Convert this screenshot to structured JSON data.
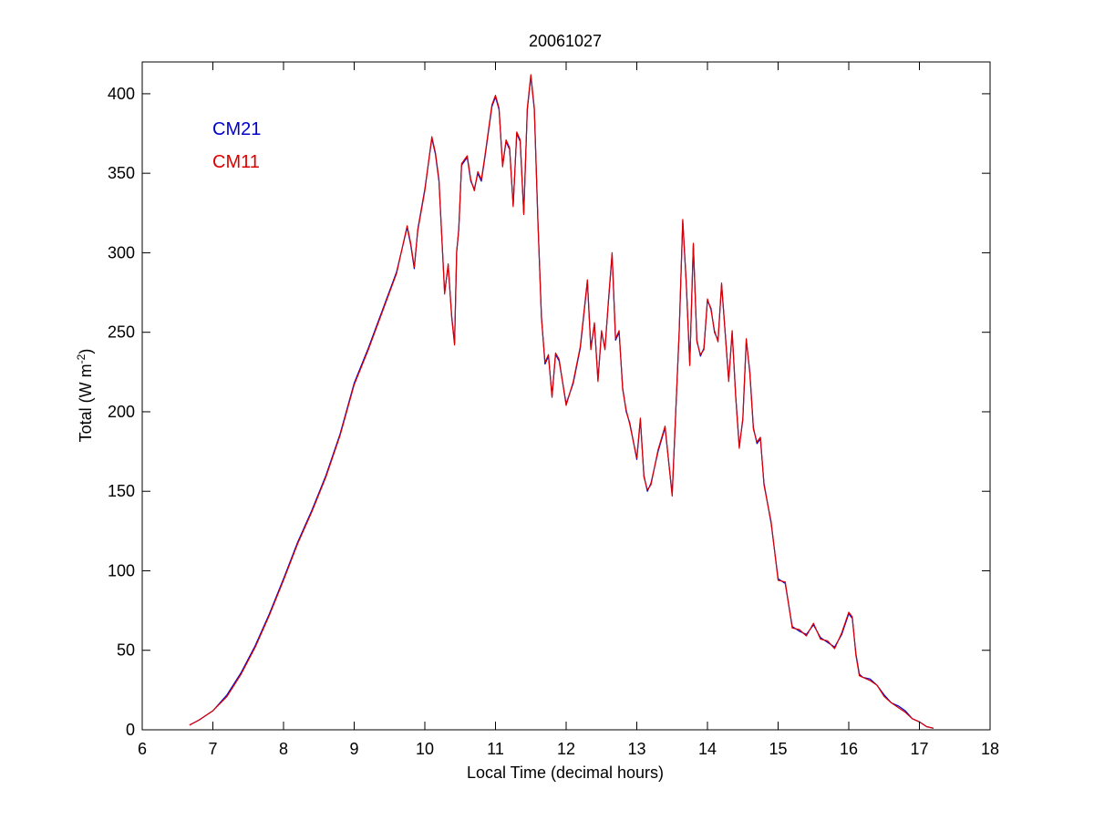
{
  "chart_data": {
    "type": "line",
    "title": "20061027",
    "xlabel": "Local Time (decimal hours)",
    "ylabel_main": "Total (W m",
    "ylabel_sup": "-2",
    "ylabel_close": ")",
    "xlim": [
      6,
      18
    ],
    "ylim": [
      0,
      420
    ],
    "xticks": [
      6,
      7,
      8,
      9,
      10,
      11,
      12,
      13,
      14,
      15,
      16,
      17,
      18
    ],
    "yticks": [
      0,
      50,
      100,
      150,
      200,
      250,
      300,
      350,
      400
    ],
    "grid": false,
    "legend_position": "top-left",
    "series": [
      {
        "name": "CM21",
        "color": "#0000cc",
        "x": [
          6.67,
          6.8,
          7.0,
          7.2,
          7.4,
          7.6,
          7.8,
          8.0,
          8.2,
          8.4,
          8.6,
          8.8,
          9.0,
          9.2,
          9.4,
          9.6,
          9.75,
          9.8,
          9.85,
          9.9,
          10.0,
          10.1,
          10.15,
          10.2,
          10.28,
          10.33,
          10.38,
          10.42,
          10.45,
          10.48,
          10.52,
          10.6,
          10.65,
          10.7,
          10.75,
          10.8,
          10.85,
          10.95,
          11.0,
          11.05,
          11.1,
          11.15,
          11.2,
          11.25,
          11.3,
          11.35,
          11.4,
          11.45,
          11.5,
          11.55,
          11.6,
          11.65,
          11.7,
          11.75,
          11.8,
          11.85,
          11.9,
          12.0,
          12.1,
          12.2,
          12.3,
          12.35,
          12.4,
          12.45,
          12.5,
          12.55,
          12.6,
          12.65,
          12.7,
          12.75,
          12.8,
          12.85,
          12.9,
          13.0,
          13.05,
          13.1,
          13.15,
          13.2,
          13.3,
          13.4,
          13.5,
          13.6,
          13.65,
          13.7,
          13.75,
          13.8,
          13.85,
          13.9,
          13.95,
          14.0,
          14.05,
          14.1,
          14.15,
          14.2,
          14.3,
          14.35,
          14.4,
          14.45,
          14.5,
          14.55,
          14.6,
          14.65,
          14.7,
          14.75,
          14.8,
          14.9,
          15.0,
          15.1,
          15.2,
          15.3,
          15.4,
          15.5,
          15.6,
          15.7,
          15.8,
          15.9,
          16.0,
          16.05,
          16.1,
          16.15,
          16.2,
          16.3,
          16.4,
          16.5,
          16.6,
          16.7,
          16.8,
          16.9,
          17.0,
          17.1,
          17.2
        ],
        "values": [
          3,
          6,
          12,
          22,
          36,
          53,
          73,
          95,
          118,
          138,
          160,
          186,
          218,
          240,
          264,
          288,
          316,
          305,
          290,
          315,
          340,
          372,
          362,
          345,
          275,
          292,
          260,
          243,
          300,
          315,
          355,
          360,
          345,
          340,
          350,
          345,
          360,
          392,
          398,
          390,
          355,
          370,
          365,
          330,
          375,
          370,
          325,
          390,
          411,
          390,
          320,
          260,
          230,
          235,
          210,
          236,
          232,
          205,
          218,
          240,
          282,
          240,
          255,
          220,
          250,
          240,
          270,
          299,
          245,
          250,
          215,
          200,
          193,
          170,
          195,
          160,
          150,
          155,
          175,
          190,
          148,
          250,
          320,
          280,
          230,
          305,
          245,
          235,
          240,
          270,
          265,
          250,
          245,
          280,
          220,
          250,
          210,
          178,
          195,
          245,
          225,
          190,
          180,
          183,
          155,
          130,
          95,
          92,
          65,
          62,
          60,
          66,
          58,
          55,
          52,
          60,
          73,
          70,
          48,
          35,
          33,
          32,
          28,
          22,
          17,
          15,
          12,
          7,
          5,
          2,
          1
        ]
      },
      {
        "name": "CM11",
        "color": "#dd0000",
        "x": [
          6.67,
          6.8,
          7.0,
          7.2,
          7.4,
          7.6,
          7.8,
          8.0,
          8.2,
          8.4,
          8.6,
          8.8,
          9.0,
          9.2,
          9.4,
          9.6,
          9.75,
          9.8,
          9.85,
          9.9,
          10.0,
          10.1,
          10.15,
          10.2,
          10.28,
          10.33,
          10.38,
          10.42,
          10.45,
          10.48,
          10.52,
          10.6,
          10.65,
          10.7,
          10.75,
          10.8,
          10.85,
          10.95,
          11.0,
          11.05,
          11.1,
          11.15,
          11.2,
          11.25,
          11.3,
          11.35,
          11.4,
          11.45,
          11.5,
          11.55,
          11.6,
          11.65,
          11.7,
          11.75,
          11.8,
          11.85,
          11.9,
          12.0,
          12.1,
          12.2,
          12.3,
          12.35,
          12.4,
          12.45,
          12.5,
          12.55,
          12.6,
          12.65,
          12.7,
          12.75,
          12.8,
          12.85,
          12.9,
          13.0,
          13.05,
          13.1,
          13.15,
          13.2,
          13.3,
          13.4,
          13.5,
          13.6,
          13.65,
          13.7,
          13.75,
          13.8,
          13.85,
          13.9,
          13.95,
          14.0,
          14.05,
          14.1,
          14.15,
          14.2,
          14.3,
          14.35,
          14.4,
          14.45,
          14.5,
          14.55,
          14.6,
          14.65,
          14.7,
          14.75,
          14.8,
          14.9,
          15.0,
          15.1,
          15.2,
          15.3,
          15.4,
          15.5,
          15.6,
          15.7,
          15.8,
          15.9,
          16.0,
          16.05,
          16.1,
          16.15,
          16.2,
          16.3,
          16.4,
          16.5,
          16.6,
          16.7,
          16.8,
          16.9,
          17.0,
          17.1,
          17.2
        ],
        "values": [
          3,
          6,
          12,
          21,
          35,
          52,
          72,
          94,
          117,
          137,
          159,
          185,
          217,
          239,
          263,
          287,
          317,
          306,
          291,
          314,
          339,
          373,
          363,
          346,
          274,
          293,
          259,
          242,
          301,
          314,
          356,
          361,
          346,
          339,
          351,
          346,
          361,
          393,
          399,
          391,
          354,
          371,
          366,
          329,
          376,
          371,
          324,
          391,
          412,
          391,
          321,
          259,
          231,
          236,
          209,
          237,
          233,
          204,
          219,
          241,
          283,
          239,
          256,
          219,
          251,
          239,
          271,
          300,
          246,
          251,
          214,
          201,
          192,
          171,
          196,
          159,
          151,
          154,
          176,
          191,
          147,
          251,
          321,
          281,
          229,
          306,
          244,
          236,
          239,
          271,
          264,
          251,
          244,
          281,
          219,
          251,
          209,
          177,
          196,
          246,
          224,
          189,
          181,
          184,
          154,
          131,
          94,
          93,
          64,
          63,
          59,
          67,
          57,
          56,
          51,
          61,
          74,
          71,
          47,
          34,
          33,
          31,
          28,
          21,
          17,
          14,
          11,
          7,
          5,
          2,
          1
        ]
      }
    ]
  }
}
